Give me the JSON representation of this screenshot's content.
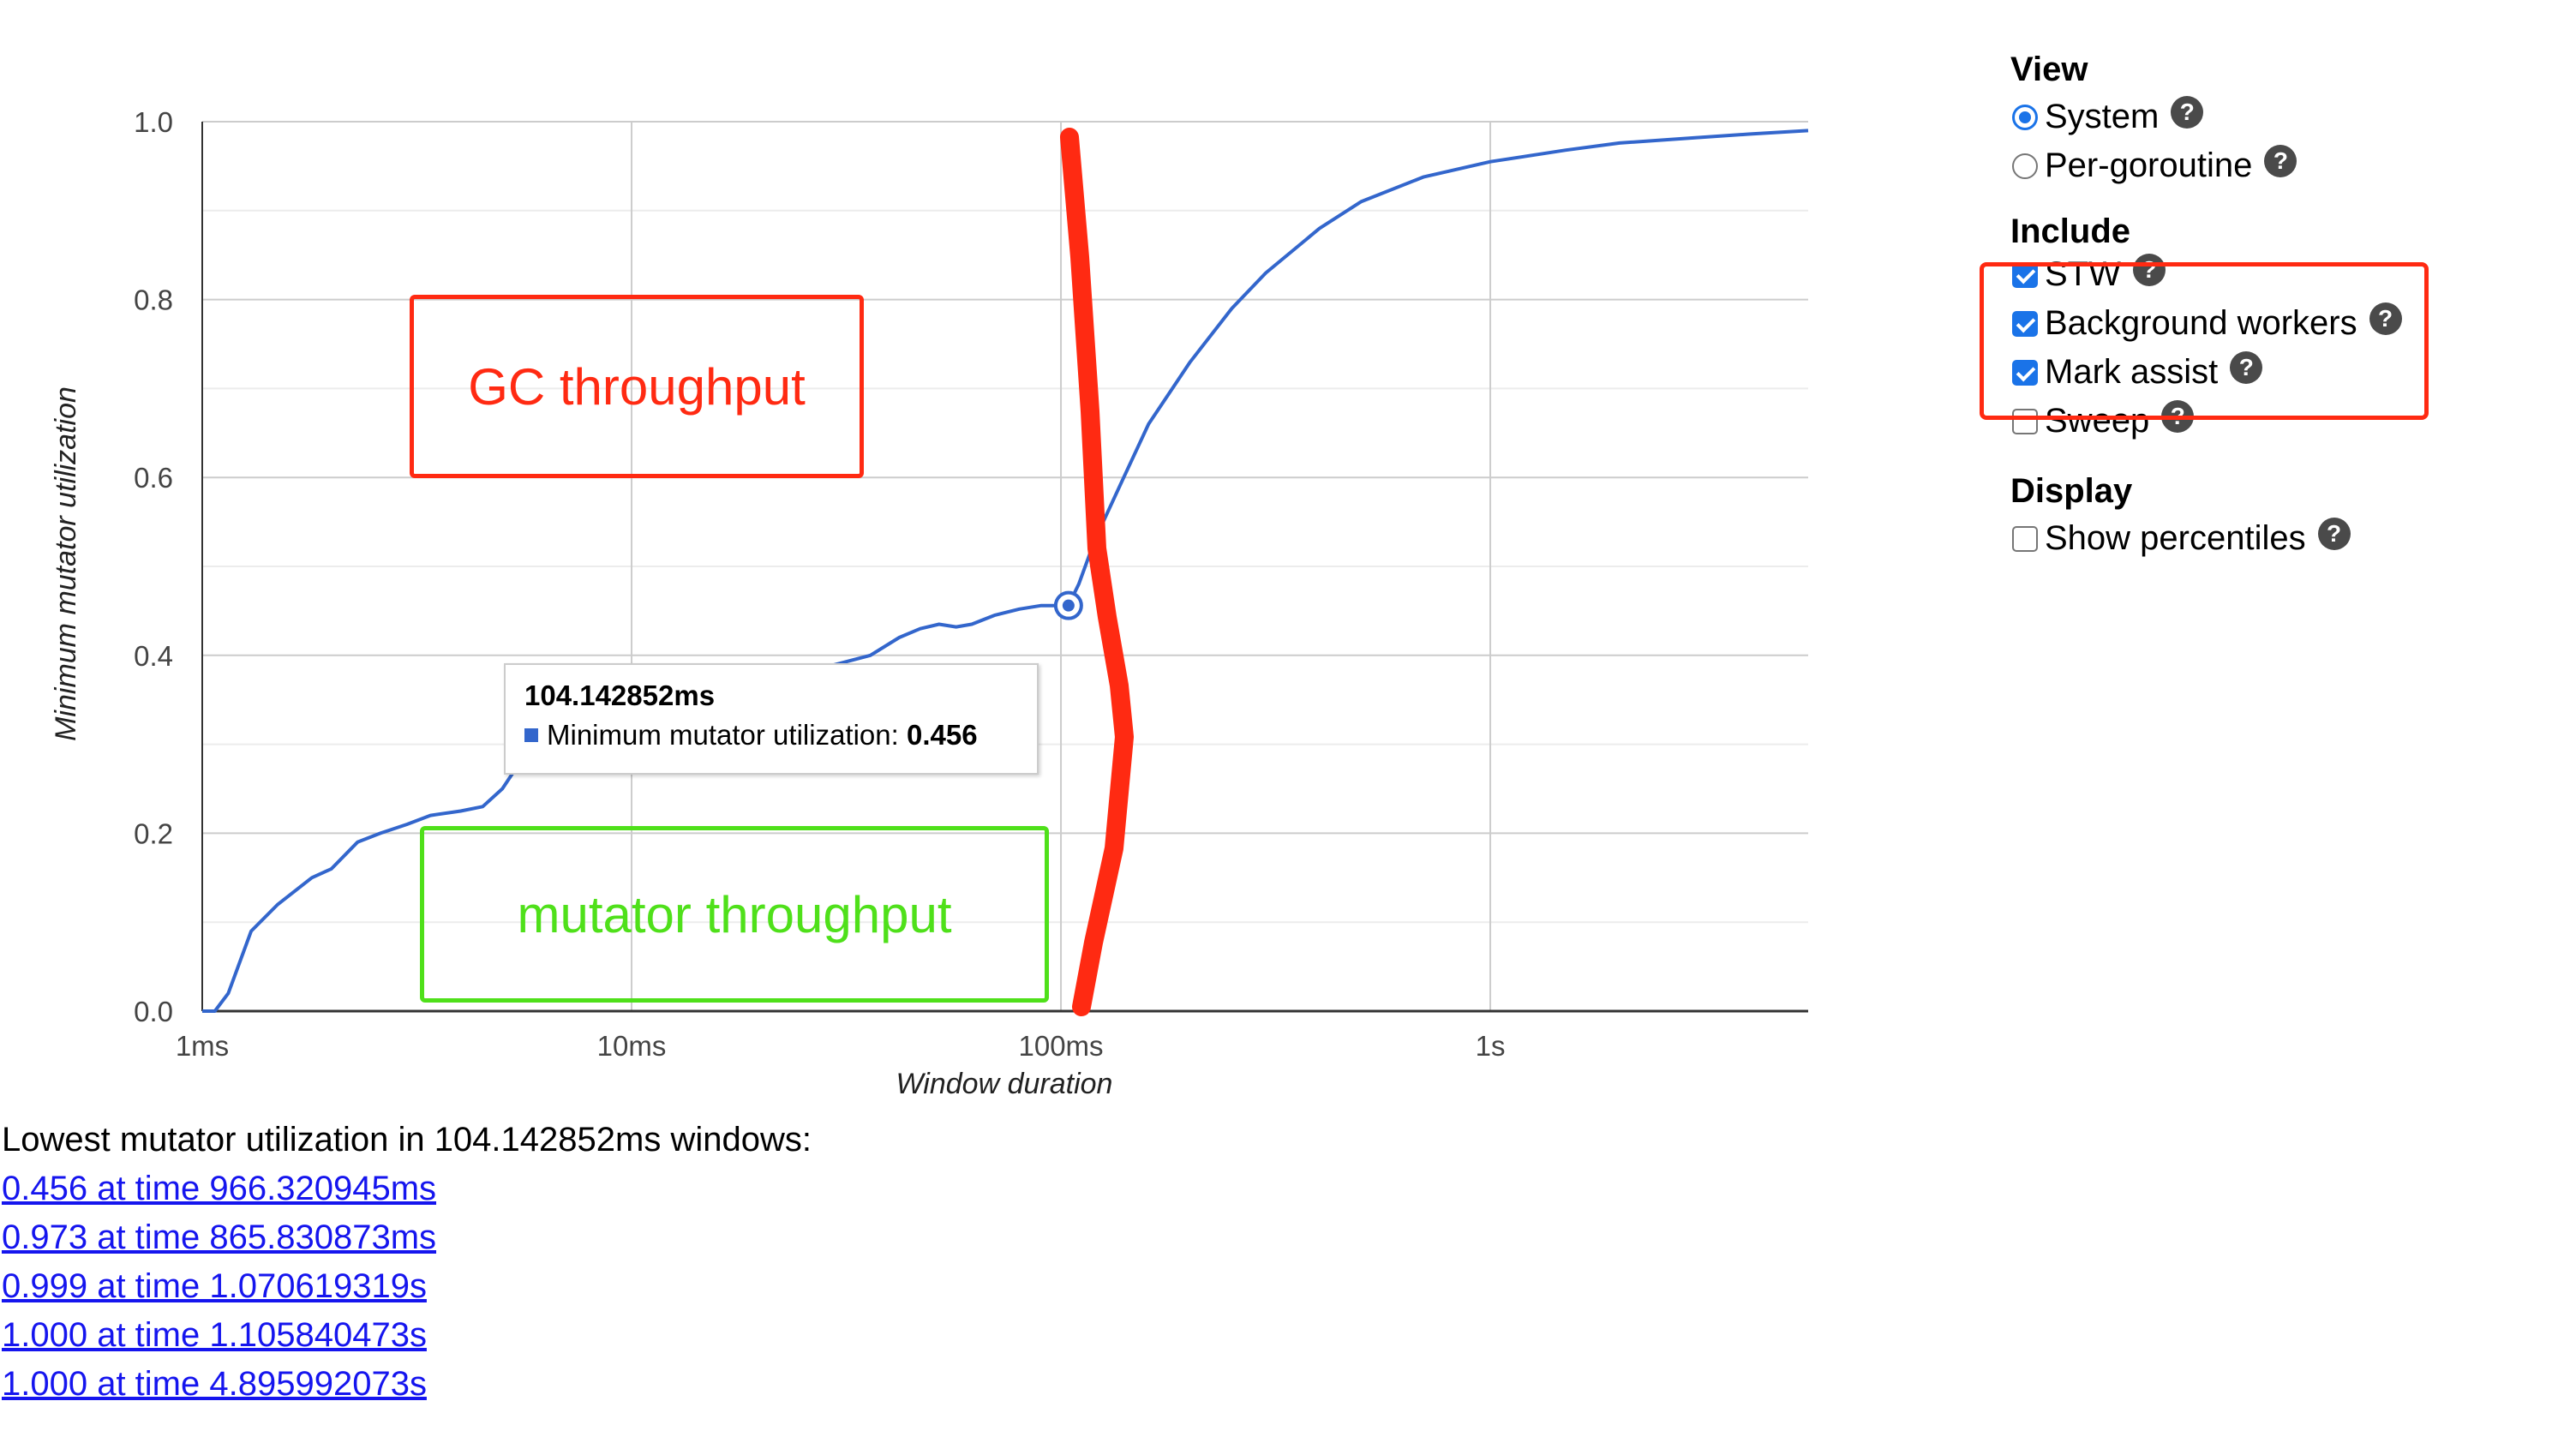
{
  "chart_data": {
    "type": "line",
    "xscale": "log",
    "x_unit_seconds": true,
    "xlim": [
      0.001,
      5.5
    ],
    "ylim": [
      0,
      1
    ],
    "xlabel": "Window duration",
    "ylabel": "Minimum mutator utilization",
    "x_ticks": [
      {
        "value": 0.001,
        "label": "1ms"
      },
      {
        "value": 0.01,
        "label": "10ms"
      },
      {
        "value": 0.1,
        "label": "100ms"
      },
      {
        "value": 1,
        "label": "1s"
      }
    ],
    "y_ticks": [
      {
        "value": 0,
        "label": "0.0"
      },
      {
        "value": 0.2,
        "label": "0.2"
      },
      {
        "value": 0.4,
        "label": "0.4"
      },
      {
        "value": 0.6,
        "label": "0.6"
      },
      {
        "value": 0.8,
        "label": "0.8"
      },
      {
        "value": 1.0,
        "label": "1.0"
      }
    ],
    "grid": true,
    "series": [
      {
        "name": "Minimum mutator utilization",
        "color": "#3366cc",
        "x": [
          0.001,
          0.00107,
          0.00115,
          0.0013,
          0.0015,
          0.0018,
          0.002,
          0.0023,
          0.0026,
          0.003,
          0.0034,
          0.004,
          0.0045,
          0.005,
          0.0055,
          0.006,
          0.007,
          0.008,
          0.01,
          0.012,
          0.015,
          0.02,
          0.025,
          0.03,
          0.036,
          0.042,
          0.047,
          0.052,
          0.057,
          0.062,
          0.07,
          0.08,
          0.09,
          0.1,
          0.104,
          0.11,
          0.12,
          0.14,
          0.16,
          0.2,
          0.25,
          0.3,
          0.4,
          0.5,
          0.7,
          1.0,
          1.5,
          2.0,
          3.0,
          4.0,
          5.5
        ],
        "y": [
          0.0,
          0.0,
          0.02,
          0.09,
          0.12,
          0.15,
          0.16,
          0.19,
          0.2,
          0.21,
          0.22,
          0.225,
          0.23,
          0.25,
          0.28,
          0.3,
          0.32,
          0.33,
          0.34,
          0.35,
          0.36,
          0.37,
          0.38,
          0.39,
          0.4,
          0.42,
          0.43,
          0.435,
          0.432,
          0.435,
          0.445,
          0.452,
          0.456,
          0.456,
          0.456,
          0.48,
          0.53,
          0.6,
          0.66,
          0.73,
          0.79,
          0.83,
          0.88,
          0.91,
          0.938,
          0.955,
          0.968,
          0.976,
          0.982,
          0.986,
          0.99
        ]
      }
    ],
    "highlight_point": {
      "x": 0.104142852,
      "y": 0.456
    },
    "tooltip": {
      "title": "104.142852ms",
      "series_label": "Minimum mutator utilization:",
      "value": "0.456"
    }
  },
  "annotations": {
    "gc_box_label": "GC throughput",
    "mutator_box_label": "mutator throughput",
    "gc_color": "#ff2a12",
    "mutator_color": "#4fe01a"
  },
  "controls": {
    "view": {
      "heading": "View",
      "options": [
        {
          "label": "System",
          "selected": true
        },
        {
          "label": "Per-goroutine",
          "selected": false
        }
      ]
    },
    "include": {
      "heading": "Include",
      "options": [
        {
          "label": "STW",
          "checked": true
        },
        {
          "label": "Background workers",
          "checked": true
        },
        {
          "label": "Mark assist",
          "checked": true
        },
        {
          "label": "Sweep",
          "checked": false
        }
      ]
    },
    "display": {
      "heading": "Display",
      "options": [
        {
          "label": "Show percentiles",
          "checked": false
        }
      ]
    },
    "help_glyph": "?"
  },
  "results": {
    "title": "Lowest mutator utilization in 104.142852ms windows:",
    "links": [
      "0.456 at time 966.320945ms",
      "0.973 at time 865.830873ms",
      "0.999 at time 1.070619319s",
      "1.000 at time 1.105840473s",
      "1.000 at time 4.895992073s"
    ]
  }
}
